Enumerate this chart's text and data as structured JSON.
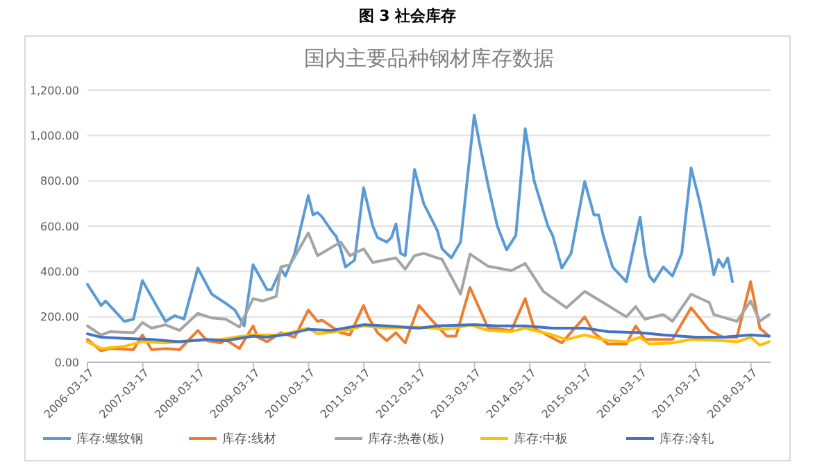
{
  "chart_data": {
    "type": "line",
    "title": "国内主要品种钢材库存数据",
    "annotations": [
      "图 3 社会库存"
    ],
    "xlim": [
      "2006-03-17",
      "2018-07-25"
    ],
    "xticks": [
      "2006-03-17",
      "2007-03-17",
      "2008-03-17",
      "2009-03-17",
      "2010-03-17",
      "2011-03-17",
      "2012-03-17",
      "2013-03-17",
      "2014-03-17",
      "2015-03-17",
      "2016-03-17",
      "2017-03-17",
      "2018-03-17"
    ],
    "ylim": [
      0,
      1200
    ],
    "yticks": [
      {
        "value": 0,
        "label": "0.00"
      },
      {
        "value": 200,
        "label": "200.00"
      },
      {
        "value": 400,
        "label": "400.00"
      },
      {
        "value": 600,
        "label": "600.00"
      },
      {
        "value": 800,
        "label": "800.00"
      },
      {
        "value": 1000,
        "label": "1,000.00"
      },
      {
        "value": 1200,
        "label": "1,200.00"
      }
    ],
    "grid": "y",
    "legend": "bottom",
    "marker": "none",
    "line_style": "solid",
    "series": [
      {
        "name": "库存:螺纹钢",
        "color": "#5b9bd5",
        "x": [
          "2006-03-17",
          "2006-06",
          "2006-07",
          "2006-11",
          "2007-01",
          "2007-03",
          "2007-06",
          "2007-08",
          "2007-10",
          "2007-12",
          "2008-03",
          "2008-06",
          "2008-09",
          "2008-11",
          "2009-01",
          "2009-03",
          "2009-06",
          "2009-07",
          "2009-09",
          "2009-10",
          "2009-12",
          "2010-03",
          "2010-04",
          "2010-05",
          "2010-06",
          "2010-08",
          "2010-09",
          "2010-10",
          "2010-11",
          "2011-01",
          "2011-03",
          "2011-05",
          "2011-06",
          "2011-08",
          "2011-09",
          "2011-10",
          "2011-11",
          "2011-12",
          "2012-02",
          "2012-04",
          "2012-06",
          "2012-07",
          "2012-08",
          "2012-10",
          "2012-12",
          "2013-03",
          "2013-04",
          "2013-06",
          "2013-08",
          "2013-10",
          "2013-12",
          "2014-02",
          "2014-04",
          "2014-07",
          "2014-08",
          "2014-10",
          "2014-12",
          "2015-03",
          "2015-05",
          "2015-06",
          "2015-07",
          "2015-09",
          "2015-12",
          "2016-03",
          "2016-04",
          "2016-05",
          "2016-06",
          "2016-08",
          "2016-10",
          "2016-12",
          "2017-02",
          "2017-04",
          "2017-06",
          "2017-07",
          "2017-08",
          "2017-09",
          "2017-10",
          "2017-11"
        ],
        "values": [
          343,
          250,
          270,
          180,
          190,
          360,
          250,
          180,
          205,
          190,
          415,
          300,
          260,
          230,
          160,
          430,
          320,
          320,
          410,
          380,
          480,
          735,
          650,
          660,
          640,
          580,
          555,
          500,
          420,
          450,
          770,
          600,
          550,
          530,
          550,
          610,
          480,
          470,
          850,
          700,
          620,
          580,
          500,
          460,
          530,
          1090,
          980,
          780,
          600,
          495,
          560,
          1030,
          800,
          600,
          560,
          415,
          480,
          797,
          650,
          650,
          560,
          420,
          355,
          640,
          480,
          380,
          355,
          420,
          380,
          480,
          857,
          700,
          500,
          385,
          453,
          420,
          460,
          355
        ]
      },
      {
        "name": "库存:线材",
        "color": "#ed7d31",
        "x": [
          "2006-03-17",
          "2006-06",
          "2006-08",
          "2007-01",
          "2007-03",
          "2007-05",
          "2007-08",
          "2007-11",
          "2008-03",
          "2008-05",
          "2008-08",
          "2008-09",
          "2008-12",
          "2009-03",
          "2009-04",
          "2009-06",
          "2009-09",
          "2009-12",
          "2010-03",
          "2010-05",
          "2010-06",
          "2010-10",
          "2010-12",
          "2011-03",
          "2011-04",
          "2011-06",
          "2011-08",
          "2011-10",
          "2011-12",
          "2012-03",
          "2012-06",
          "2012-09",
          "2012-11",
          "2013-02",
          "2013-06",
          "2013-11",
          "2014-02",
          "2014-04",
          "2014-10",
          "2015-03",
          "2015-05",
          "2015-08",
          "2015-12",
          "2016-02",
          "2016-04",
          "2016-10",
          "2017-02",
          "2017-06",
          "2017-09",
          "2017-12",
          "2018-03",
          "2018-05",
          "2018-07"
        ],
        "values": [
          100,
          50,
          60,
          55,
          120,
          55,
          60,
          55,
          140,
          95,
          85,
          100,
          60,
          160,
          110,
          90,
          130,
          110,
          230,
          180,
          185,
          130,
          120,
          250,
          200,
          130,
          95,
          130,
          85,
          250,
          180,
          115,
          115,
          330,
          150,
          140,
          280,
          150,
          85,
          200,
          130,
          80,
          80,
          160,
          100,
          100,
          240,
          140,
          110,
          110,
          355,
          150,
          115
        ]
      },
      {
        "name": "库存:热卷(板)",
        "color": "#a5a5a5",
        "x": [
          "2006-03-17",
          "2006-06",
          "2006-08",
          "2007-01",
          "2007-03",
          "2007-05",
          "2007-08",
          "2007-11",
          "2008-03",
          "2008-06",
          "2008-09",
          "2008-12",
          "2009-03",
          "2009-05",
          "2009-08",
          "2009-09",
          "2009-11",
          "2010-03",
          "2010-05",
          "2010-10",
          "2010-12",
          "2011-03",
          "2011-05",
          "2011-10",
          "2011-12",
          "2012-02",
          "2012-04",
          "2012-08",
          "2012-12",
          "2013-02",
          "2013-06",
          "2013-11",
          "2014-02",
          "2014-06",
          "2014-11",
          "2015-03",
          "2015-08",
          "2015-12",
          "2016-02",
          "2016-04",
          "2016-08",
          "2016-10",
          "2017-02",
          "2017-06",
          "2017-07",
          "2017-12",
          "2018-03",
          "2018-05",
          "2018-07"
        ],
        "values": [
          160,
          120,
          135,
          130,
          175,
          150,
          165,
          140,
          215,
          195,
          190,
          155,
          280,
          270,
          290,
          420,
          430,
          570,
          470,
          530,
          470,
          500,
          440,
          460,
          410,
          470,
          480,
          453,
          300,
          477,
          423,
          404,
          435,
          312,
          240,
          312,
          250,
          200,
          245,
          190,
          210,
          180,
          300,
          263,
          210,
          180,
          270,
          180,
          210
        ]
      },
      {
        "name": "库存:中板",
        "color": "#ffc000",
        "x": [
          "2006-03-17",
          "2006-06",
          "2006-11",
          "2007-03",
          "2007-08",
          "2008-02",
          "2008-08",
          "2008-11",
          "2009-03",
          "2009-08",
          "2009-11",
          "2010-03",
          "2010-05",
          "2010-11",
          "2011-03",
          "2011-08",
          "2012-03",
          "2012-08",
          "2012-11",
          "2013-02",
          "2013-06",
          "2013-11",
          "2014-02",
          "2014-08",
          "2014-11",
          "2015-03",
          "2015-08",
          "2015-12",
          "2016-03",
          "2016-05",
          "2016-10",
          "2017-02",
          "2017-09",
          "2017-12",
          "2018-03",
          "2018-05",
          "2018-07"
        ],
        "values": [
          90,
          60,
          70,
          90,
          85,
          95,
          100,
          110,
          120,
          120,
          130,
          150,
          125,
          140,
          160,
          150,
          155,
          145,
          150,
          165,
          140,
          135,
          150,
          120,
          100,
          120,
          95,
          90,
          110,
          80,
          85,
          100,
          95,
          90,
          110,
          75,
          90
        ]
      },
      {
        "name": "库存:冷轧",
        "color": "#4472c4",
        "x": [
          "2006-03-17",
          "2006-06",
          "2006-11",
          "2007-05",
          "2007-11",
          "2008-05",
          "2008-09",
          "2009-03",
          "2009-06",
          "2009-11",
          "2010-03",
          "2010-08",
          "2011-03",
          "2011-08",
          "2012-03",
          "2012-07",
          "2013-03",
          "2013-08",
          "2014-02",
          "2014-08",
          "2015-03",
          "2015-08",
          "2016-03",
          "2016-08",
          "2017-03",
          "2017-09",
          "2018-03",
          "2018-07"
        ],
        "values": [
          125,
          110,
          105,
          100,
          90,
          100,
          95,
          115,
          110,
          125,
          145,
          140,
          165,
          160,
          150,
          160,
          165,
          160,
          160,
          150,
          150,
          135,
          130,
          120,
          110,
          110,
          120,
          115
        ]
      }
    ]
  }
}
